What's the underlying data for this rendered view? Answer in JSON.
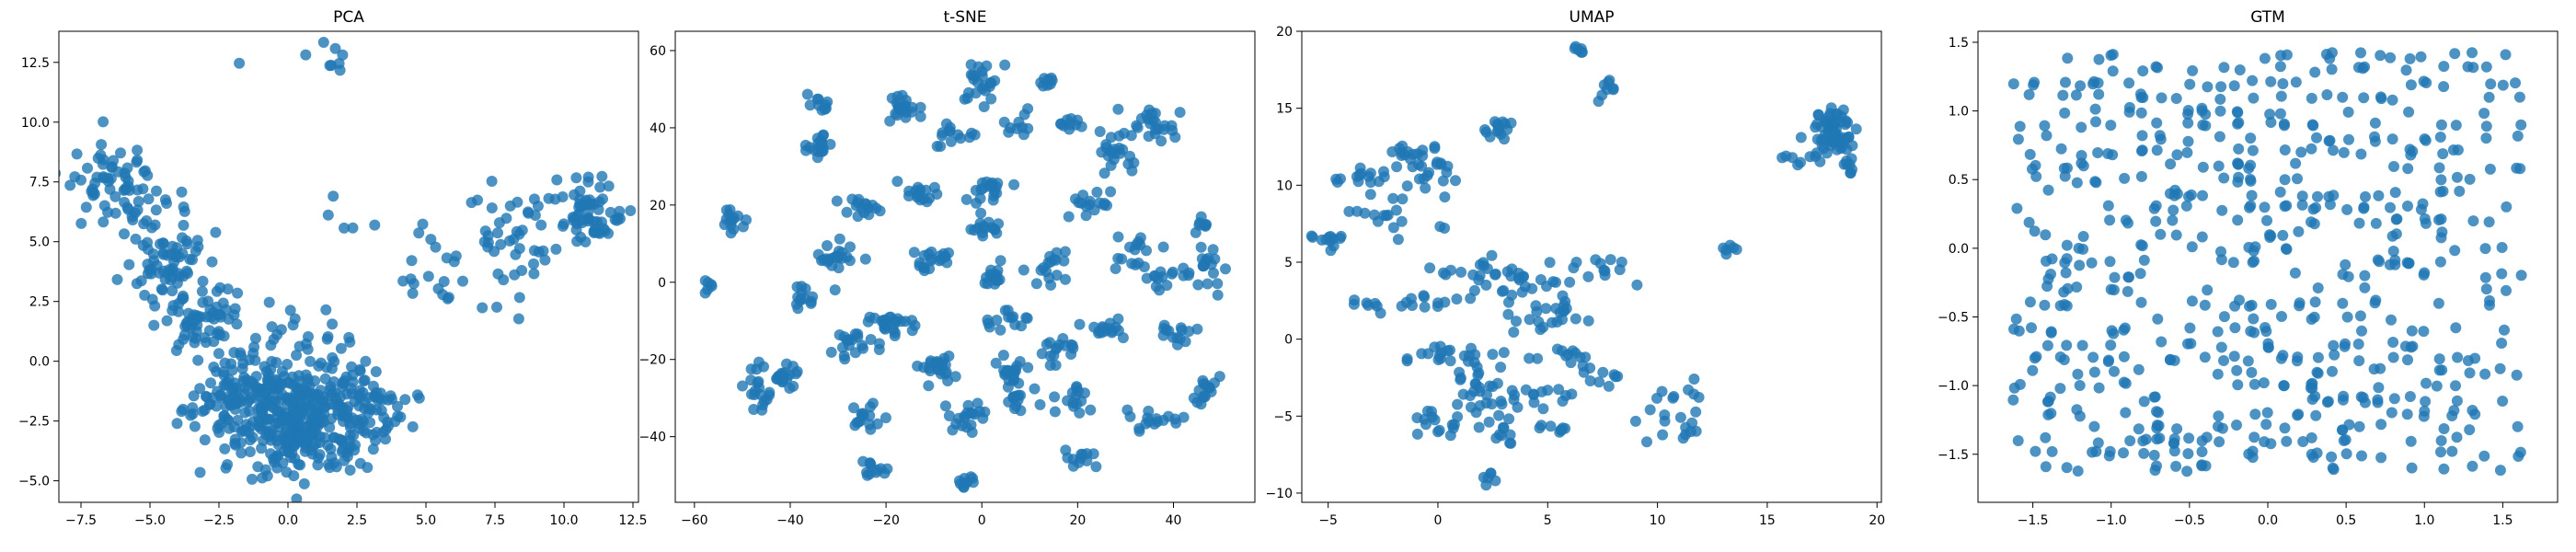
{
  "chart_data": [
    {
      "type": "scatter",
      "title": "PCA",
      "xlabel": "",
      "ylabel": "",
      "xlim": [
        -8.3,
        12.7
      ],
      "ylim": [
        -5.9,
        13.8
      ],
      "xticks": [
        -7.5,
        -5.0,
        -2.5,
        0.0,
        2.5,
        5.0,
        7.5,
        10.0,
        12.5
      ],
      "xtick_labels": [
        "−7.5",
        "−5.0",
        "−2.5",
        "0.0",
        "2.5",
        "5.0",
        "7.5",
        "10.0",
        "12.5"
      ],
      "yticks": [
        -5.0,
        -2.5,
        0.0,
        2.5,
        5.0,
        7.5,
        10.0,
        12.5
      ],
      "ytick_labels": [
        "−5.0",
        "−2.5",
        "0.0",
        "2.5",
        "5.0",
        "7.5",
        "10.0",
        "12.5"
      ],
      "grid": false,
      "marker_color": "#1f77b4",
      "marker_alpha": 0.8,
      "clusters": [
        {
          "x": -6.2,
          "y": 7.3,
          "sx": 0.9,
          "sy": 0.9,
          "n": 70
        },
        {
          "x": -4.4,
          "y": 4.4,
          "sx": 0.8,
          "sy": 0.9,
          "n": 70
        },
        {
          "x": -3.0,
          "y": 1.8,
          "sx": 0.8,
          "sy": 0.8,
          "n": 60
        },
        {
          "x": -1.5,
          "y": -1.6,
          "sx": 1.1,
          "sy": 1.0,
          "n": 160
        },
        {
          "x": 0.4,
          "y": -2.8,
          "sx": 1.1,
          "sy": 1.0,
          "n": 200
        },
        {
          "x": 2.2,
          "y": -2.0,
          "sx": 1.2,
          "sy": 1.0,
          "n": 120
        },
        {
          "x": 0.3,
          "y": 0.2,
          "sx": 1.0,
          "sy": 1.0,
          "n": 40
        },
        {
          "x": 10.8,
          "y": 6.4,
          "sx": 0.7,
          "sy": 0.6,
          "n": 60
        },
        {
          "x": 8.3,
          "y": 5.3,
          "sx": 1.2,
          "sy": 1.2,
          "n": 45
        },
        {
          "x": 5.5,
          "y": 3.0,
          "sx": 1.0,
          "sy": 1.0,
          "n": 20
        },
        {
          "x": 1.6,
          "y": 12.7,
          "sx": 0.4,
          "sy": 0.3,
          "n": 8
        },
        {
          "x": 2.1,
          "y": 6.0,
          "sx": 0.6,
          "sy": 0.5,
          "n": 5
        },
        {
          "x": -1.8,
          "y": 12.4,
          "sx": 0.1,
          "sy": 0.1,
          "n": 1
        }
      ]
    },
    {
      "type": "scatter",
      "title": "t-SNE",
      "xlabel": "",
      "ylabel": "",
      "xlim": [
        -64,
        57
      ],
      "ylim": [
        -57,
        65
      ],
      "xticks": [
        -60,
        -40,
        -20,
        0,
        20,
        40
      ],
      "xtick_labels": [
        "−60",
        "−40",
        "−20",
        "0",
        "20",
        "40"
      ],
      "yticks": [
        -40,
        -20,
        0,
        20,
        40,
        60
      ],
      "ytick_labels": [
        "−40",
        "−20",
        "0",
        "20",
        "40",
        "60"
      ],
      "grid": false,
      "marker_color": "#1f77b4",
      "marker_alpha": 0.8,
      "clusters": [
        {
          "x": -57,
          "y": -2,
          "sx": 0.8,
          "sy": 1.5,
          "n": 6
        },
        {
          "x": -52,
          "y": 16,
          "sx": 1.5,
          "sy": 1.5,
          "n": 14
        },
        {
          "x": -46,
          "y": -27,
          "sx": 1.5,
          "sy": 3,
          "n": 20
        },
        {
          "x": -41,
          "y": -24,
          "sx": 2.5,
          "sy": 1.5,
          "n": 18
        },
        {
          "x": -37,
          "y": -4,
          "sx": 2,
          "sy": 1.5,
          "n": 14
        },
        {
          "x": -34,
          "y": 36,
          "sx": 1.5,
          "sy": 2,
          "n": 18
        },
        {
          "x": -33,
          "y": 47,
          "sx": 1.2,
          "sy": 1.2,
          "n": 10
        },
        {
          "x": -30,
          "y": 7,
          "sx": 2.5,
          "sy": 1.8,
          "n": 22
        },
        {
          "x": -26,
          "y": -16,
          "sx": 3,
          "sy": 1.5,
          "n": 20
        },
        {
          "x": -25,
          "y": 19,
          "sx": 2.5,
          "sy": 1.2,
          "n": 16
        },
        {
          "x": -25,
          "y": -35,
          "sx": 1.5,
          "sy": 3,
          "n": 16
        },
        {
          "x": -22,
          "y": -48,
          "sx": 1.8,
          "sy": 1.2,
          "n": 12
        },
        {
          "x": -18,
          "y": -11,
          "sx": 3,
          "sy": 2,
          "n": 24
        },
        {
          "x": -16,
          "y": 45,
          "sx": 2,
          "sy": 2,
          "n": 20
        },
        {
          "x": -13,
          "y": 23,
          "sx": 2,
          "sy": 2,
          "n": 16
        },
        {
          "x": -10,
          "y": 5,
          "sx": 2,
          "sy": 1.8,
          "n": 20
        },
        {
          "x": -9,
          "y": -22,
          "sx": 2.5,
          "sy": 2.5,
          "n": 22
        },
        {
          "x": -7,
          "y": 38,
          "sx": 2,
          "sy": 2,
          "n": 14
        },
        {
          "x": -3,
          "y": -35,
          "sx": 2,
          "sy": 2.5,
          "n": 20
        },
        {
          "x": -3,
          "y": -52,
          "sx": 1.5,
          "sy": 1,
          "n": 10
        },
        {
          "x": 0,
          "y": 52,
          "sx": 2,
          "sy": 3,
          "n": 24
        },
        {
          "x": 1,
          "y": 23,
          "sx": 2,
          "sy": 2,
          "n": 20
        },
        {
          "x": 1,
          "y": 14,
          "sx": 2,
          "sy": 1.5,
          "n": 14
        },
        {
          "x": 3,
          "y": 2,
          "sx": 2,
          "sy": 1.8,
          "n": 16
        },
        {
          "x": 5,
          "y": -10,
          "sx": 2,
          "sy": 1.5,
          "n": 14
        },
        {
          "x": 6,
          "y": -22,
          "sx": 2,
          "sy": 2,
          "n": 18
        },
        {
          "x": 8,
          "y": -31,
          "sx": 2,
          "sy": 2,
          "n": 14
        },
        {
          "x": 8,
          "y": 41,
          "sx": 1.5,
          "sy": 1.5,
          "n": 10
        },
        {
          "x": 14,
          "y": 52,
          "sx": 1.2,
          "sy": 1,
          "n": 8
        },
        {
          "x": 15,
          "y": 4,
          "sx": 2,
          "sy": 2,
          "n": 16
        },
        {
          "x": 16,
          "y": -18,
          "sx": 2,
          "sy": 2,
          "n": 16
        },
        {
          "x": 18,
          "y": 40,
          "sx": 1.5,
          "sy": 1.5,
          "n": 10
        },
        {
          "x": 20,
          "y": -30,
          "sx": 2,
          "sy": 2,
          "n": 14
        },
        {
          "x": 21,
          "y": -46,
          "sx": 1.5,
          "sy": 1.5,
          "n": 12
        },
        {
          "x": 23,
          "y": 20,
          "sx": 2,
          "sy": 2,
          "n": 16
        },
        {
          "x": 25,
          "y": -12,
          "sx": 2.5,
          "sy": 1.5,
          "n": 16
        },
        {
          "x": 28,
          "y": 33,
          "sx": 2.5,
          "sy": 2.5,
          "n": 22
        },
        {
          "x": 32,
          "y": 8,
          "sx": 2,
          "sy": 2,
          "n": 16
        },
        {
          "x": 35,
          "y": 40,
          "sx": 3,
          "sy": 2.5,
          "n": 24
        },
        {
          "x": 36,
          "y": -35,
          "sx": 2.5,
          "sy": 1.5,
          "n": 16
        },
        {
          "x": 38,
          "y": 1,
          "sx": 2,
          "sy": 2,
          "n": 14
        },
        {
          "x": 40,
          "y": -14,
          "sx": 2,
          "sy": 2,
          "n": 14
        },
        {
          "x": 47,
          "y": 3,
          "sx": 2,
          "sy": 3,
          "n": 18
        },
        {
          "x": 47,
          "y": -28,
          "sx": 2,
          "sy": 2,
          "n": 16
        },
        {
          "x": 46,
          "y": 15,
          "sx": 1.2,
          "sy": 1.5,
          "n": 8
        }
      ]
    },
    {
      "type": "scatter",
      "title": "UMAP",
      "xlabel": "",
      "ylabel": "",
      "xlim": [
        -6.2,
        20.2
      ],
      "ylim": [
        -10.6,
        20.0
      ],
      "xticks": [
        -5,
        0,
        5,
        10,
        15,
        20
      ],
      "xtick_labels": [
        "−5",
        "0",
        "5",
        "10",
        "15",
        "20"
      ],
      "yticks": [
        -10,
        -5,
        0,
        5,
        10,
        15,
        20
      ],
      "ytick_labels": [
        "−10",
        "−5",
        "0",
        "5",
        "10",
        "15",
        "20"
      ],
      "grid": false,
      "marker_color": "#1f77b4",
      "marker_alpha": 0.8,
      "clusters": [
        {
          "x": -5,
          "y": 6.4,
          "sx": 0.5,
          "sy": 0.3,
          "n": 12
        },
        {
          "x": -3.3,
          "y": 10.5,
          "sx": 0.6,
          "sy": 0.3,
          "n": 14
        },
        {
          "x": -1.5,
          "y": 12,
          "sx": 0.4,
          "sy": 0.4,
          "n": 12
        },
        {
          "x": -0.5,
          "y": 11,
          "sx": 0.5,
          "sy": 0.8,
          "n": 20
        },
        {
          "x": -2,
          "y": 8,
          "sx": 1.1,
          "sy": 0.8,
          "n": 18
        },
        {
          "x": -3,
          "y": 2.3,
          "sx": 0.5,
          "sy": 0.3,
          "n": 8
        },
        {
          "x": -0.3,
          "y": 2.4,
          "sx": 0.6,
          "sy": 0.3,
          "n": 10
        },
        {
          "x": 2.8,
          "y": 13.5,
          "sx": 0.5,
          "sy": 0.3,
          "n": 14
        },
        {
          "x": 1.5,
          "y": 4.5,
          "sx": 1.2,
          "sy": 0.4,
          "n": 16
        },
        {
          "x": 4,
          "y": 3.4,
          "sx": 1,
          "sy": 0.8,
          "n": 28
        },
        {
          "x": 5,
          "y": 1.5,
          "sx": 0.8,
          "sy": 0.6,
          "n": 18
        },
        {
          "x": 1,
          "y": -1.2,
          "sx": 1.4,
          "sy": 0.4,
          "n": 24
        },
        {
          "x": 2.5,
          "y": -3.5,
          "sx": 0.8,
          "sy": 1.2,
          "n": 30
        },
        {
          "x": 0,
          "y": -5.5,
          "sx": 0.8,
          "sy": 0.5,
          "n": 16
        },
        {
          "x": 2.3,
          "y": -9,
          "sx": 0.2,
          "sy": 0.4,
          "n": 6
        },
        {
          "x": 3,
          "y": -6,
          "sx": 0.3,
          "sy": 0.5,
          "n": 8
        },
        {
          "x": 4.5,
          "y": -3.5,
          "sx": 0.8,
          "sy": 0.5,
          "n": 12
        },
        {
          "x": 5.2,
          "y": -5.7,
          "sx": 0.4,
          "sy": 0.2,
          "n": 8
        },
        {
          "x": 6.2,
          "y": -1.2,
          "sx": 0.8,
          "sy": 0.5,
          "n": 12
        },
        {
          "x": 7.3,
          "y": 4.8,
          "sx": 0.7,
          "sy": 0.5,
          "n": 12
        },
        {
          "x": 6.4,
          "y": 18.6,
          "sx": 0.2,
          "sy": 0.2,
          "n": 6
        },
        {
          "x": 7.6,
          "y": 16.5,
          "sx": 0.2,
          "sy": 0.5,
          "n": 8
        },
        {
          "x": 8,
          "y": -2.6,
          "sx": 0.5,
          "sy": 0.3,
          "n": 8
        },
        {
          "x": 10.5,
          "y": -4.5,
          "sx": 0.8,
          "sy": 1,
          "n": 16
        },
        {
          "x": 11.5,
          "y": -6,
          "sx": 0.3,
          "sy": 0.3,
          "n": 6
        },
        {
          "x": 13.2,
          "y": 5.7,
          "sx": 0.3,
          "sy": 0.3,
          "n": 6
        },
        {
          "x": 16.5,
          "y": 11.8,
          "sx": 0.5,
          "sy": 0.4,
          "n": 8
        },
        {
          "x": 18,
          "y": 13.4,
          "sx": 0.6,
          "sy": 0.8,
          "n": 60
        },
        {
          "x": 18.8,
          "y": 11.2,
          "sx": 0.2,
          "sy": 0.2,
          "n": 6
        }
      ]
    },
    {
      "type": "scatter",
      "title": "GTM",
      "xlabel": "",
      "ylabel": "",
      "xlim": [
        -1.85,
        1.85
      ],
      "ylim": [
        -1.85,
        1.58
      ],
      "xticks": [
        -1.5,
        -1.0,
        -0.5,
        0.0,
        0.5,
        1.0,
        1.5
      ],
      "xtick_labels": [
        "−1.5",
        "−1.0",
        "−0.5",
        "0.0",
        "0.5",
        "1.0",
        "1.5"
      ],
      "yticks": [
        -1.5,
        -1.0,
        -0.5,
        0.0,
        0.5,
        1.0,
        1.5
      ],
      "ytick_labels": [
        "−1.5",
        "−1.0",
        "−0.5",
        "0.0",
        "0.5",
        "1.0",
        "1.5"
      ],
      "grid": false,
      "marker_color": "#1f77b4",
      "marker_alpha": 0.8,
      "grid_step": 0.1,
      "point_count": 620
    }
  ]
}
